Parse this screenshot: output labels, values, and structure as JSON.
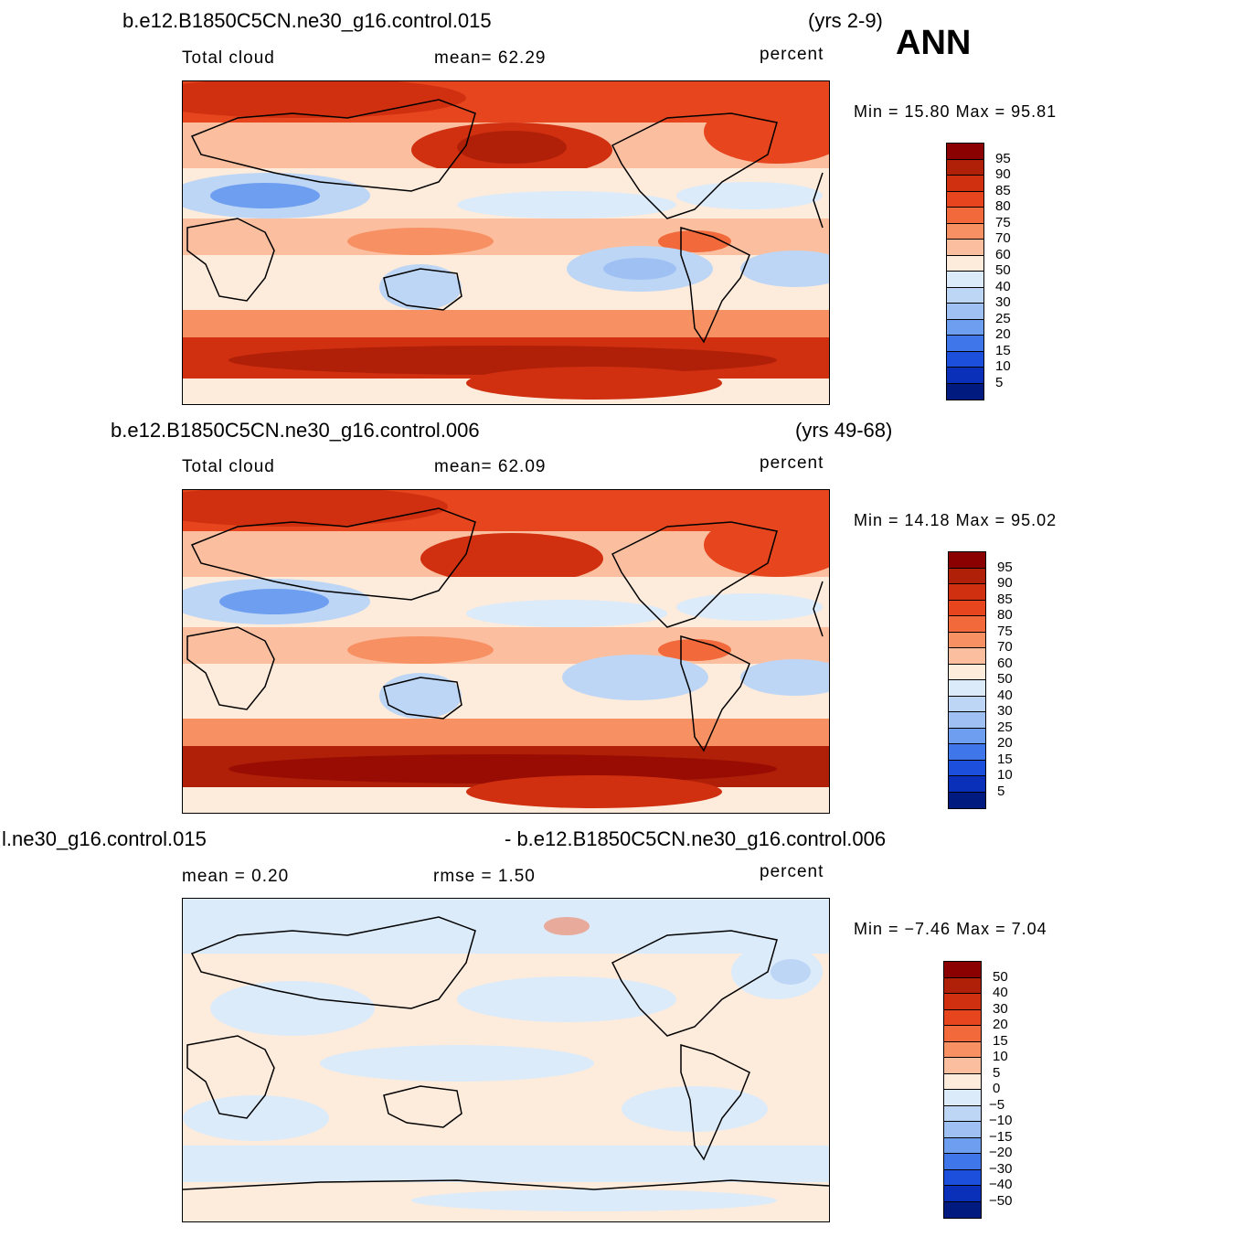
{
  "header": {
    "season": "ANN"
  },
  "panels": [
    {
      "case": "b.e12.B1850C5CN.ne30_g16.control.015",
      "years": "(yrs 2-9)",
      "left_label": "Total cloud",
      "center_label": "mean=   62.29",
      "units": "percent",
      "minmax": "Min =   15.80  Max =   95.81",
      "colorbar_labels": [
        "95",
        "90",
        "85",
        "80",
        "75",
        "70",
        "60",
        "50",
        "40",
        "30",
        "25",
        "20",
        "15",
        "10",
        "5"
      ],
      "colorbar_colors": [
        "#8b0000",
        "#b02008",
        "#d03010",
        "#e6451e",
        "#f26a3c",
        "#f79164",
        "#fbbfa0",
        "#fdebdc",
        "#dcebfa",
        "#bdd6f5",
        "#9fc0f2",
        "#6e9ef0",
        "#3f76ea",
        "#1c4fdc",
        "#0a2fb8",
        "#001a80"
      ]
    },
    {
      "case": "b.e12.B1850C5CN.ne30_g16.control.006",
      "years": "(yrs 49-68)",
      "left_label": "Total cloud",
      "center_label": "mean=   62.09",
      "units": "percent",
      "minmax": "Min =   14.18  Max =   95.02",
      "colorbar_labels": [
        "95",
        "90",
        "85",
        "80",
        "75",
        "70",
        "60",
        "50",
        "40",
        "30",
        "25",
        "20",
        "15",
        "10",
        "5"
      ],
      "colorbar_colors": [
        "#8b0000",
        "#b02008",
        "#d03010",
        "#e6451e",
        "#f26a3c",
        "#f79164",
        "#fbbfa0",
        "#fdebdc",
        "#dcebfa",
        "#bdd6f5",
        "#9fc0f2",
        "#6e9ef0",
        "#3f76ea",
        "#1c4fdc",
        "#0a2fb8",
        "#001a80"
      ]
    },
    {
      "case_left": "l.ne30_g16.control.015",
      "case_right": "- b.e12.B1850C5CN.ne30_g16.control.006",
      "left_label": "mean =    0.20",
      "center_label": "rmse =    1.50",
      "units": "percent",
      "minmax": "Min =  −7.46  Max =     7.04",
      "colorbar_labels": [
        "50",
        "40",
        "30",
        "20",
        "15",
        "10",
        "5",
        "0",
        "−5",
        "−10",
        "−15",
        "−20",
        "−30",
        "−40",
        "−50"
      ],
      "colorbar_colors": [
        "#8b0000",
        "#b02008",
        "#d03010",
        "#e6451e",
        "#f26a3c",
        "#f79164",
        "#fbbfa0",
        "#fdebdc",
        "#dcebfa",
        "#bdd6f5",
        "#9fc0f2",
        "#6e9ef0",
        "#3f76ea",
        "#1c4fdc",
        "#0a2fb8",
        "#001a80"
      ]
    }
  ]
}
